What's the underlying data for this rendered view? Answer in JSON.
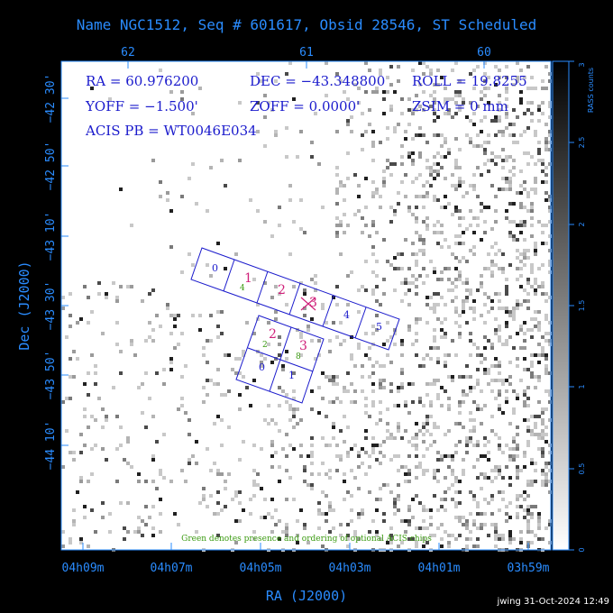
{
  "header": {
    "title": "Name NGC1512, Seq # 601617, Obsid 28546, ST Scheduled"
  },
  "colors": {
    "axis": "#2a8cff",
    "chip": "#1a1acc",
    "label_pink": "#d0207a",
    "label_green": "#3a9a10",
    "label_blue": "#1a1acc",
    "bg": "#ffffff",
    "frame": "#000000"
  },
  "info": {
    "ra": "RA = 60.976200",
    "dec": "DEC = −43.348800",
    "roll": "ROLL = 19.8255",
    "yoff": "YOFF =  −1.500'",
    "zoff": "ZOFF =  0.0000'",
    "zsim": "ZSIM = 0 mm",
    "acis": "ACIS PB = WT0046E034"
  },
  "axes": {
    "top_ticks": [
      "62",
      "61",
      "60"
    ],
    "bottom_ticks": [
      "04h09m",
      "04h07m",
      "04h05m",
      "04h03m",
      "04h01m",
      "03h59m"
    ],
    "left_ticks": [
      "−42 30'",
      "−42 50'",
      "−43 10'",
      "−43 30'",
      "−43 50'",
      "−44 10'"
    ],
    "xlabel": "RA (J2000)",
    "ylabel": "Dec (J2000)"
  },
  "colorbar": {
    "label": "RASS counts",
    "ticks": [
      "0",
      "0.5",
      "1",
      "1.5",
      "2",
      "2.5",
      "3"
    ]
  },
  "chips": {
    "spec_labels": [
      "0",
      "1",
      "2",
      "3",
      "4",
      "5"
    ],
    "imaging_labels": [
      "0",
      "1",
      "2",
      "3"
    ],
    "optional_green": [
      "4",
      "2",
      "8"
    ]
  },
  "footer": {
    "note": "Green denotes presence and ordering of optional ACIS chips",
    "stamp": "jwing 31-Oct-2024 12:49"
  }
}
